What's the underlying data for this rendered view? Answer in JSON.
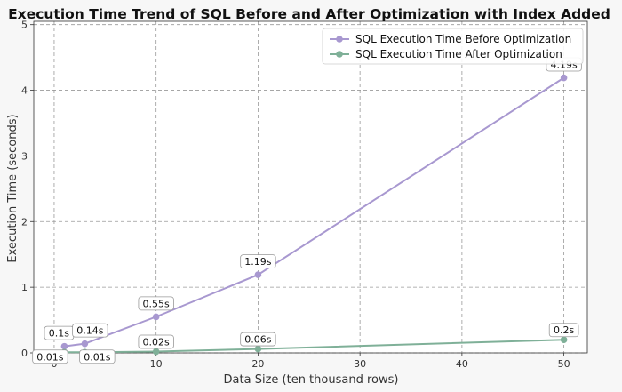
{
  "chart_data": {
    "type": "line",
    "title": "Execution Time Trend of SQL Before and After Optimization with Index Added",
    "xlabel": "Data Size (ten thousand rows)",
    "ylabel": "Execution Time (seconds)",
    "xlim": [
      -2,
      52.3
    ],
    "ylim": [
      0,
      5.05
    ],
    "xticks": [
      0,
      10,
      20,
      30,
      40,
      50
    ],
    "yticks": [
      0,
      1,
      2,
      3,
      4,
      5
    ],
    "grid": true,
    "legend_position": "top-right",
    "series": [
      {
        "name": "SQL Execution Time Before Optimization",
        "color": "#a898d0",
        "x": [
          1,
          3,
          10,
          20,
          50
        ],
        "y": [
          0.1,
          0.14,
          0.55,
          1.19,
          4.19
        ],
        "labels": [
          "0.1s",
          "0.14s",
          "0.55s",
          "1.19s",
          "4.19s"
        ]
      },
      {
        "name": "SQL Execution Time After Optimization",
        "color": "#7fb098",
        "x": [
          1,
          3,
          10,
          20,
          50
        ],
        "y": [
          0.01,
          0.01,
          0.02,
          0.06,
          0.2
        ],
        "labels": [
          "0.01s",
          "0.01s",
          "0.02s",
          "0.06s",
          "0.2s"
        ]
      }
    ]
  }
}
